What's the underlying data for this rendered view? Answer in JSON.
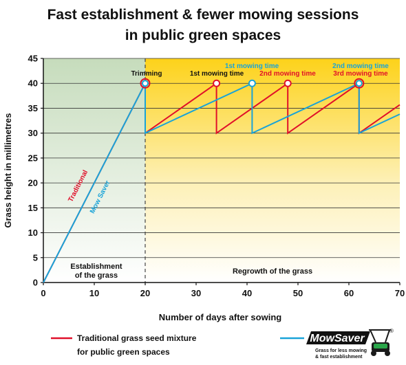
{
  "title_line1": "Fast establishment & fewer mowing sessions",
  "title_line2": "in public green spaces",
  "chart_data": {
    "type": "line",
    "xlabel": "Number of days after sowing",
    "ylabel": "Grass height in millimetres",
    "xlim": [
      0,
      70
    ],
    "ylim": [
      0,
      45
    ],
    "xticks": [
      "0",
      "10",
      "20",
      "30",
      "40",
      "50",
      "60",
      "70"
    ],
    "yticks": [
      "0",
      "5",
      "10",
      "15",
      "20",
      "25",
      "30",
      "35",
      "40",
      "45"
    ],
    "grid": "horizontal",
    "series": [
      {
        "name": "Traditional grass seed mixture for public green spaces",
        "color": "#e0102a",
        "points": [
          [
            0,
            0
          ],
          [
            20,
            40
          ],
          [
            20,
            30
          ],
          [
            34,
            40
          ],
          [
            34,
            30
          ],
          [
            48,
            40
          ],
          [
            48,
            30
          ],
          [
            62,
            40
          ],
          [
            62,
            30
          ],
          [
            70,
            35.7
          ]
        ]
      },
      {
        "name": "MowSaver",
        "color": "#19a3d8",
        "points": [
          [
            0,
            0
          ],
          [
            20,
            40
          ],
          [
            20,
            30
          ],
          [
            41,
            40
          ],
          [
            41,
            30
          ],
          [
            62,
            40
          ],
          [
            62,
            30
          ],
          [
            70,
            33.8
          ]
        ]
      }
    ],
    "markers": [
      {
        "x": 20,
        "y": 40,
        "style": "both"
      },
      {
        "x": 34,
        "y": 40,
        "style": "red"
      },
      {
        "x": 41,
        "y": 40,
        "style": "blue"
      },
      {
        "x": 48,
        "y": 40,
        "style": "red"
      },
      {
        "x": 62,
        "y": 40,
        "style": "both"
      }
    ],
    "annotations": {
      "trimming": "Trimming",
      "red_1": "1st mowing time",
      "blue_1": "1st mowing time",
      "red_2": "2nd mowing time",
      "blue_2": "2nd mowing time",
      "red_3": "3rd mowing time",
      "line_label_traditional": "Traditional",
      "line_label_mowsaver": "Mow Saver"
    },
    "zones": {
      "establishment_line1": "Establishment",
      "establishment_line2": "of the grass",
      "regrowth": "Regrowth of the grass"
    },
    "zone_colors": {
      "establishment": "#cfe2c6",
      "regrowth": "#fdd21a"
    }
  },
  "legend": {
    "traditional_line1": "Traditional grass seed mixture",
    "traditional_line2": "for public green spaces",
    "traditional_color": "#e0102a",
    "mowsaver_color": "#19a3d8"
  },
  "logo": {
    "name": "MowSaver",
    "registered": "®",
    "tagline_line1": "Grass for less mowing",
    "tagline_line2": "& fast establishment"
  }
}
